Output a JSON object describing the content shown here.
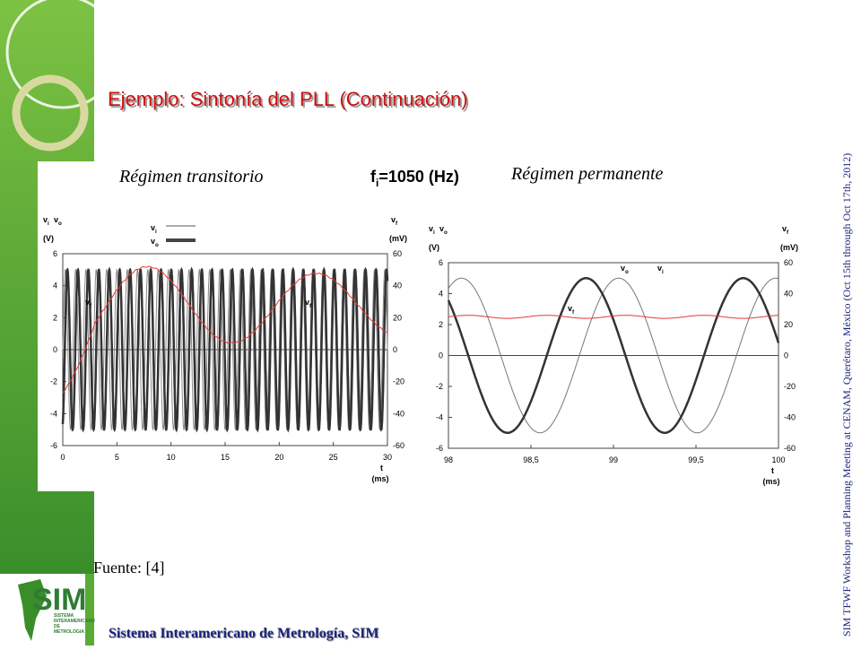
{
  "header": {
    "title": "Ejemplo: Sintonía del PLL (Continuación)"
  },
  "subtitles": {
    "left": "Régimen transitorio",
    "center": {
      "main": "f",
      "sub": "i",
      "rest": "=1050 (Hz)"
    },
    "right": "Régimen permanente"
  },
  "charts": [
    {
      "y_left": {
        "symbols": [
          [
            "v",
            "i"
          ],
          [
            "v",
            "o"
          ]
        ],
        "unit": "(V)"
      },
      "y_right": {
        "symbol": [
          "v",
          "f"
        ],
        "unit": "(mV)"
      },
      "x_axis": {
        "symbol": "t",
        "unit": "(ms)"
      },
      "yticks": [
        6,
        4,
        2,
        0,
        -2,
        -4,
        -6
      ],
      "y2ticks": [
        60,
        40,
        20,
        0,
        -20,
        -40,
        -60
      ],
      "xticks": [
        0,
        5,
        10,
        15,
        20,
        25,
        30
      ],
      "legend": [
        [
          "v",
          "i"
        ],
        [
          "v",
          "o"
        ]
      ],
      "annotations": [
        [
          "v",
          "f"
        ],
        [
          "v",
          "f"
        ]
      ]
    },
    {
      "y_left": {
        "symbols": [
          [
            "v",
            "i"
          ],
          [
            "v",
            "o"
          ]
        ],
        "unit": "(V)"
      },
      "y_right": {
        "symbol": [
          "v",
          "f"
        ],
        "unit": "(mV)"
      },
      "x_axis": {
        "symbol": "t",
        "unit": "(ms)"
      },
      "yticks": [
        6,
        4,
        2,
        0,
        -2,
        -4,
        -6
      ],
      "y2ticks": [
        60,
        40,
        20,
        0,
        -20,
        -40,
        -60
      ],
      "xticks": [
        "98",
        "98,5",
        "99",
        "99,5",
        "100"
      ],
      "annotations": [
        [
          "v",
          "o"
        ],
        [
          "v",
          "i"
        ],
        [
          "v",
          "f"
        ]
      ]
    }
  ],
  "source": "Fuente: [4]",
  "logo": {
    "text": "SIM",
    "subtext": [
      "SISTEMA",
      "INTERAMERICANO",
      "DE",
      "METROLOGIA"
    ]
  },
  "footer": "Sistema Interamericano de Metrología, SIM",
  "side_note": "SIM TFWF Workshop and Planning Meeting at CENAM, Querétaro, México (Oct 15th through Oct 17th, 2012)"
}
